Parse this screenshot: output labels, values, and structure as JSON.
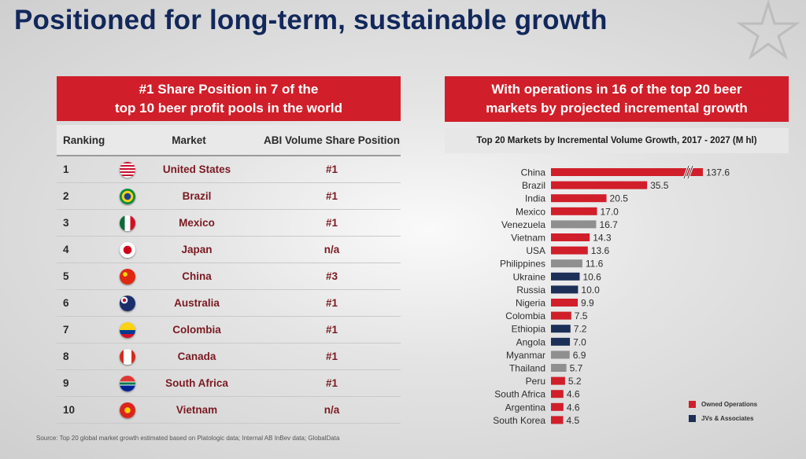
{
  "page": {
    "title": "Positioned for long-term, sustainable growth",
    "source": "Source: Top 20 global market growth estimated based on Platologic data; Internal AB InBev data; GlobalData"
  },
  "left_panel": {
    "banner_line1": "#1 Share Position in 7 of the",
    "banner_line2": "top 10 beer profit pools in the world",
    "headers": {
      "ranking": "Ranking",
      "market": "Market",
      "position": "ABI Volume Share Position"
    },
    "rows": [
      {
        "rank": "1",
        "market": "United States",
        "position": "#1",
        "flag": "us-flag-icon"
      },
      {
        "rank": "2",
        "market": "Brazil",
        "position": "#1",
        "flag": "brazil-flag-icon"
      },
      {
        "rank": "3",
        "market": "Mexico",
        "position": "#1",
        "flag": "mexico-flag-icon"
      },
      {
        "rank": "4",
        "market": "Japan",
        "position": "n/a",
        "flag": "japan-flag-icon"
      },
      {
        "rank": "5",
        "market": "China",
        "position": "#3",
        "flag": "china-flag-icon"
      },
      {
        "rank": "6",
        "market": "Australia",
        "position": "#1",
        "flag": "australia-flag-icon"
      },
      {
        "rank": "7",
        "market": "Colombia",
        "position": "#1",
        "flag": "colombia-flag-icon"
      },
      {
        "rank": "8",
        "market": "Canada",
        "position": "#1",
        "flag": "canada-flag-icon"
      },
      {
        "rank": "9",
        "market": "South Africa",
        "position": "#1",
        "flag": "south-africa-flag-icon"
      },
      {
        "rank": "10",
        "market": "Vietnam",
        "position": "n/a",
        "flag": "vietnam-flag-icon"
      }
    ]
  },
  "right_panel": {
    "banner_line1": "With operations in 16 of the top 20 beer",
    "banner_line2": "markets by projected incremental growth"
  },
  "colors": {
    "owned": "#d01f2a",
    "jv": "#1b2f57",
    "no_operations": "#8f8f8f",
    "title": "#12285b"
  },
  "chart_data": {
    "type": "bar",
    "orientation": "horizontal",
    "title": "Top 20 Markets by Incremental Volume Growth, 2017 - 2027 (M hl)",
    "categories": [
      "China",
      "Brazil",
      "India",
      "Mexico",
      "Venezuela",
      "Vietnam",
      "USA",
      "Philippines",
      "Ukraine",
      "Russia",
      "Nigeria",
      "Colombia",
      "Ethiopia",
      "Angola",
      "Myanmar",
      "Thailand",
      "Peru",
      "South Africa",
      "Argentina",
      "South Korea"
    ],
    "values": [
      137.6,
      35.5,
      20.5,
      17.0,
      16.7,
      14.3,
      13.6,
      11.6,
      10.6,
      10.0,
      9.9,
      7.5,
      7.2,
      7.0,
      6.9,
      5.7,
      5.2,
      4.6,
      4.6,
      4.5
    ],
    "value_labels": [
      "137.6",
      "35.5",
      "20.5",
      "17.0",
      "16.7",
      "14.3",
      "13.6",
      "11.6",
      "10.6",
      "10.0",
      "9.9",
      "7.5",
      "7.2",
      "7.0",
      "6.9",
      "5.7",
      "5.2",
      "4.6",
      "4.6",
      "4.5"
    ],
    "groups": [
      "owned",
      "owned",
      "owned",
      "owned",
      "none",
      "owned",
      "owned",
      "none",
      "jv",
      "jv",
      "owned",
      "owned",
      "jv",
      "jv",
      "none",
      "none",
      "owned",
      "owned",
      "owned",
      "owned"
    ],
    "axis_break": "China",
    "legend": [
      {
        "key": "owned",
        "label": "Owned Operations"
      },
      {
        "key": "jv",
        "label": "JVs & Associates"
      }
    ],
    "legend_position": "bottom-right",
    "grid": false
  }
}
